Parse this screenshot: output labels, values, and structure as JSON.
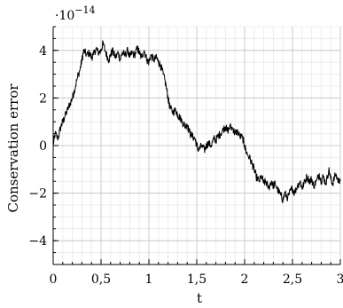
{
  "chart_data": {
    "type": "line",
    "title": "",
    "xlabel": "t",
    "ylabel": "Conservation error",
    "y_scale_factor_label": "·10",
    "y_scale_exponent": "−14",
    "xlim": [
      0,
      3
    ],
    "ylim": [
      -5,
      5
    ],
    "x_ticks": [
      0,
      0.5,
      1,
      1.5,
      2,
      2.5,
      3
    ],
    "x_tick_labels": [
      "0",
      "0,5",
      "1",
      "1,5",
      "2",
      "2,5",
      "3"
    ],
    "y_ticks": [
      -4,
      -2,
      0,
      2,
      4
    ],
    "y_tick_labels": [
      "−4",
      "−2",
      "0",
      "2",
      "4"
    ],
    "grid": true,
    "minor_grid": true,
    "line_color": "#000000",
    "series": [
      {
        "x": [
          0,
          0.02,
          0.05,
          0.08,
          0.1,
          0.12,
          0.15,
          0.18,
          0.2,
          0.22,
          0.25,
          0.28,
          0.3,
          0.32,
          0.35,
          0.38,
          0.4,
          0.42,
          0.45,
          0.47,
          0.5,
          0.52,
          0.55,
          0.58,
          0.6,
          0.62,
          0.65,
          0.68,
          0.7,
          0.72,
          0.75,
          0.78,
          0.8,
          0.82,
          0.85,
          0.88,
          0.9,
          0.92,
          0.95,
          0.98,
          1.0,
          1.02,
          1.05,
          1.08,
          1.1,
          1.12,
          1.15,
          1.18,
          1.2,
          1.22,
          1.25,
          1.28,
          1.3,
          1.32,
          1.35,
          1.38,
          1.4,
          1.42,
          1.45,
          1.48,
          1.5,
          1.52,
          1.55,
          1.58,
          1.6,
          1.62,
          1.65,
          1.68,
          1.7,
          1.72,
          1.75,
          1.78,
          1.8,
          1.82,
          1.85,
          1.88,
          1.9,
          1.92,
          1.95,
          1.98,
          2.0,
          2.02,
          2.05,
          2.08,
          2.1,
          2.12,
          2.15,
          2.18,
          2.2,
          2.22,
          2.25,
          2.28,
          2.3,
          2.32,
          2.35,
          2.38,
          2.4,
          2.42,
          2.45,
          2.48,
          2.5,
          2.52,
          2.55,
          2.58,
          2.6,
          2.62,
          2.65,
          2.68,
          2.7,
          2.72,
          2.75,
          2.78,
          2.8,
          2.82,
          2.85,
          2.88,
          2.9,
          2.92,
          2.95,
          2.98,
          3.0
        ],
        "y": [
          0.0,
          0.5,
          0.3,
          0.8,
          1.0,
          1.2,
          1.5,
          1.8,
          2.0,
          2.3,
          2.8,
          3.2,
          3.6,
          4.0,
          3.8,
          3.9,
          3.7,
          3.8,
          4.1,
          3.9,
          4.0,
          4.3,
          3.9,
          3.6,
          3.8,
          4.0,
          3.7,
          3.9,
          3.6,
          3.9,
          3.8,
          4.0,
          3.7,
          3.9,
          3.8,
          4.1,
          3.9,
          3.7,
          4.0,
          3.6,
          3.5,
          3.8,
          3.6,
          3.7,
          3.5,
          3.4,
          3.0,
          2.5,
          2.0,
          1.6,
          1.4,
          1.5,
          1.3,
          1.2,
          1.0,
          0.8,
          0.9,
          0.6,
          0.4,
          0.3,
          0.0,
          -0.2,
          0.0,
          -0.2,
          0.0,
          0.1,
          0.0,
          0.3,
          0.2,
          0.4,
          0.5,
          0.7,
          0.8,
          0.6,
          0.8,
          0.7,
          0.5,
          0.6,
          0.4,
          0.3,
          0.0,
          -0.3,
          -0.5,
          -0.8,
          -1.0,
          -1.3,
          -1.5,
          -1.3,
          -1.6,
          -1.5,
          -1.8,
          -1.5,
          -1.7,
          -1.6,
          -1.9,
          -2.1,
          -2.3,
          -2.0,
          -2.2,
          -1.9,
          -1.8,
          -2.0,
          -1.7,
          -1.5,
          -1.8,
          -1.6,
          -1.3,
          -1.5,
          -1.4,
          -1.7,
          -1.5,
          -1.2,
          -1.5,
          -1.3,
          -1.6,
          -1.0,
          -1.4,
          -1.6,
          -1.2,
          -1.5,
          -1.4
        ]
      }
    ]
  }
}
